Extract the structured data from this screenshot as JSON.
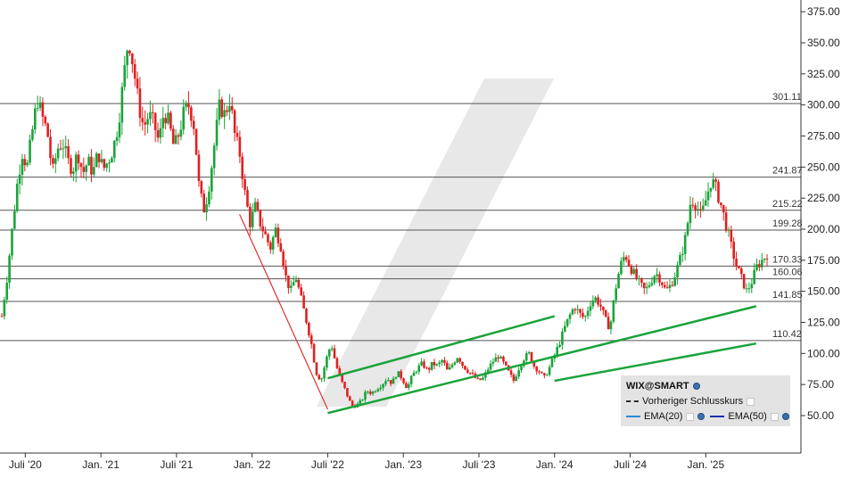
{
  "chart_data": {
    "type": "candlestick",
    "title": "",
    "xlabel": "",
    "ylabel": "",
    "ylim": [
      25,
      385
    ],
    "y_ticks": [
      "375.00",
      "350.00",
      "325.00",
      "300.00",
      "275.00",
      "250.00",
      "225.00",
      "200.00",
      "175.00",
      "150.00",
      "125.00",
      "100.00",
      "75.00",
      "50.00"
    ],
    "x_ticks": [
      "Juli '20",
      "Jan. '21",
      "Juli '21",
      "Jan. '22",
      "Juli '22",
      "Jan. '23",
      "Juli '23",
      "Jan. '24",
      "Juli '24",
      "Jan. '25"
    ],
    "horizontal_levels": [
      "301.11",
      "241.87",
      "215.22",
      "199.28",
      "170.33",
      "160.06",
      "141.85",
      "110.42"
    ],
    "closes": [
      130,
      160,
      198,
      235,
      262,
      250,
      278,
      305,
      290,
      278,
      245,
      265,
      270,
      255,
      248,
      262,
      245,
      255,
      245,
      262,
      248,
      255,
      265,
      285,
      320,
      355,
      330,
      300,
      282,
      292,
      285,
      270,
      295,
      285,
      265,
      278,
      295,
      300,
      282,
      230,
      215,
      238,
      270,
      300,
      292,
      305,
      275,
      260,
      228,
      205,
      218,
      205,
      195,
      185,
      200,
      188,
      162,
      150,
      162,
      145,
      128,
      110,
      85,
      78,
      95,
      108,
      90,
      78,
      68,
      58,
      58,
      62,
      70,
      68,
      72,
      75,
      80,
      76,
      85,
      80,
      72,
      82,
      88,
      92,
      86,
      92,
      90,
      95,
      85,
      92,
      98,
      90,
      86,
      82,
      78,
      80,
      88,
      94,
      98,
      92,
      85,
      78,
      88,
      96,
      100,
      90,
      86,
      80,
      88,
      98,
      108,
      120,
      130,
      138,
      132,
      128,
      140,
      145,
      140,
      128,
      120,
      150,
      170,
      180,
      170,
      162,
      155,
      150,
      158,
      165,
      160,
      150,
      155,
      165,
      178,
      195,
      225,
      220,
      210,
      225,
      240,
      232,
      218,
      202,
      185,
      170,
      160,
      150,
      158,
      170,
      175,
      180
    ],
    "trendlines": [
      {
        "from": [
          "Dez. '21",
          212
        ],
        "to": [
          "Juli '22",
          55
        ],
        "color": "#e03030"
      },
      {
        "from": [
          "Juli '22",
          80
        ],
        "to": [
          "Jan. '24",
          130
        ],
        "color": "#1aa33a"
      },
      {
        "from": [
          "Juli '22",
          52
        ],
        "to": [
          "Mai '25",
          138
        ],
        "color": "#1aa33a"
      },
      {
        "from": [
          "Jan. '24",
          78
        ],
        "to": [
          "Mai '25",
          108
        ],
        "color": "#1aa33a"
      }
    ],
    "legend": {
      "symbol": "WIX@SMART",
      "prev_close_label": "Vorheriger Schlusskurs",
      "ema20_label": "EMA(20)",
      "ema50_label": "EMA(50)"
    },
    "legend_placement": "bottom-right",
    "grid": "horizontal at price levels",
    "colors": {
      "up": "#1aa33a",
      "down": "#e02020",
      "ema20": "#2a8ad8",
      "ema50": "#1530b0",
      "levels": "#555555"
    }
  }
}
